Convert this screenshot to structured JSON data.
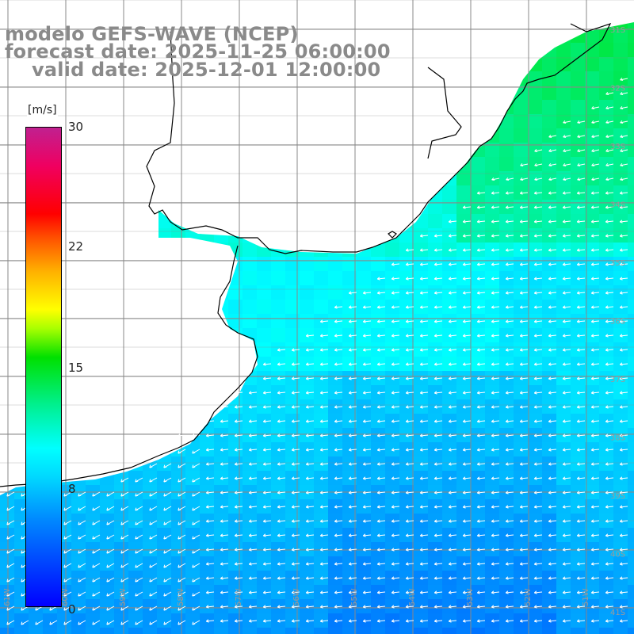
{
  "title": {
    "line1": "modelo GEFS-WAVE (NCEP)",
    "line2": "forecast date: 2025-11-25 06:00:00",
    "line3": "valid date: 2025-12-01 12:00:00"
  },
  "colorbar": {
    "unit": "[m/s]",
    "ticks": [
      "30",
      "22",
      "15",
      "8",
      "0"
    ],
    "tick_values": [
      30,
      22,
      15,
      8,
      0
    ],
    "min": 0,
    "max": 30,
    "colors": [
      "#0000ff",
      "#0088ff",
      "#00d8ff",
      "#00ffff",
      "#00f090",
      "#00e000",
      "#a8ff00",
      "#ffff00",
      "#ffb000",
      "#ff5000",
      "#ff0000",
      "#f00060",
      "#c02090"
    ]
  },
  "map": {
    "variable": "wind speed and direction",
    "lat_labels": [
      "31S",
      "32S",
      "33S",
      "34S",
      "35S",
      "36S",
      "37S",
      "38S",
      "39S",
      "40S",
      "41S"
    ],
    "lon_labels": [
      "61W",
      "60W",
      "59W",
      "58W",
      "57W",
      "56W",
      "55W",
      "54W",
      "53W",
      "52W",
      "51W"
    ],
    "wind_direction": "from east / northeast",
    "land_color": "#ffffff",
    "grid_color": "#888888",
    "arrow_color": "#ffffff",
    "coastline_color": "#000000"
  }
}
